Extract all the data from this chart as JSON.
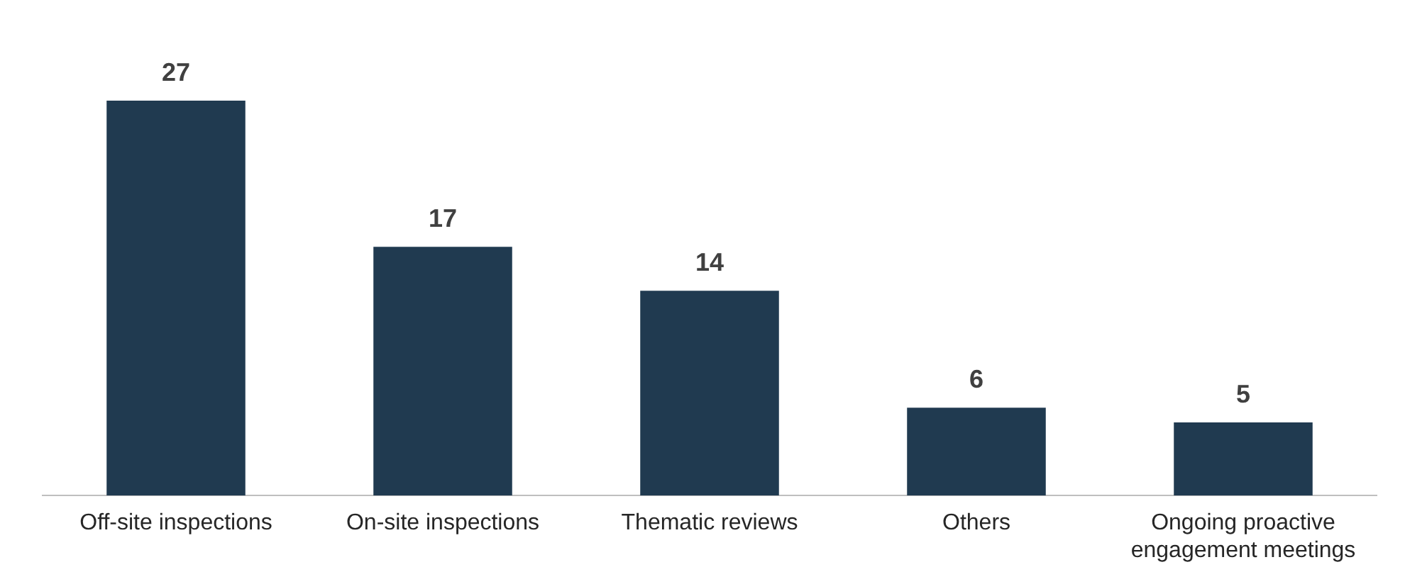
{
  "chart_data": {
    "type": "bar",
    "categories": [
      "Off-site inspections",
      "On-site inspections",
      "Thematic reviews",
      "Others",
      "Ongoing proactive engagement meetings"
    ],
    "values": [
      27,
      17,
      14,
      6,
      5
    ],
    "color": "#203a50",
    "data_labels": true,
    "grid": false,
    "legend": false
  }
}
